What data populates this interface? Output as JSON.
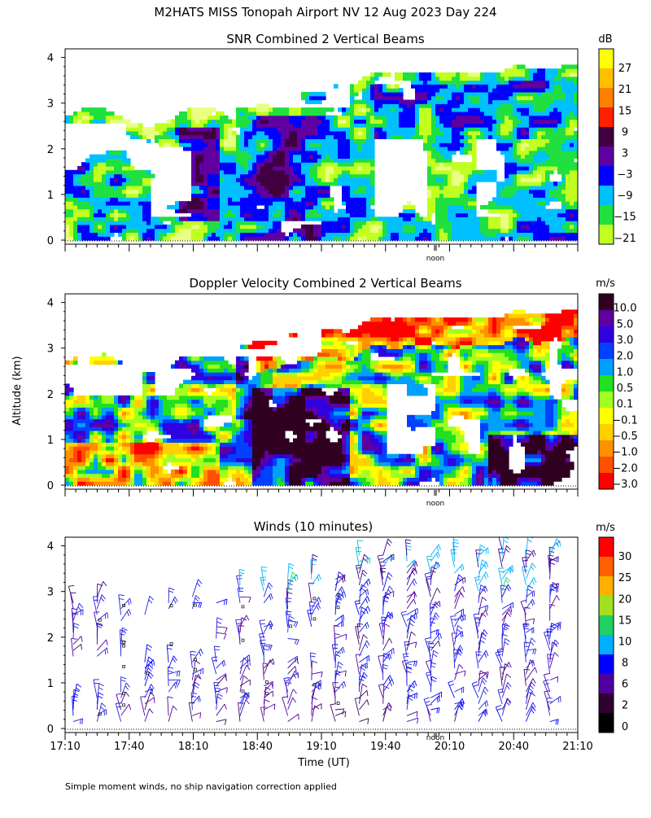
{
  "page": {
    "title": "M2HATS MISS Tonopah Airport NV  12 Aug 2023 Day 224",
    "y_axis_label": "Altitude (km)",
    "x_axis_label": "Time (UT)",
    "footnote": "Simple moment winds, no ship navigation correction applied"
  },
  "chart_data": [
    {
      "type": "heatmap",
      "title": "SNR Combined 2 Vertical Beams",
      "units": "dB",
      "ylim": [
        0,
        4
      ],
      "y_ticks": [
        "0",
        "1",
        "2",
        "3",
        "4"
      ],
      "x_range_minutes": [
        0,
        240
      ],
      "noon_label": "noon",
      "noon_minute": 170,
      "colorbar": {
        "labels": [
          "27",
          "21",
          "15",
          "9",
          "3",
          "−3",
          "−9",
          "−15",
          "−21"
        ],
        "colors": [
          "#ffff00",
          "#ffc000",
          "#ff8000",
          "#ff2000",
          "#400040",
          "#6000a0",
          "#0000ff",
          "#00c0ff",
          "#20e040",
          "#c0ff20"
        ]
      }
    },
    {
      "type": "heatmap",
      "title": "Doppler Velocity Combined 2 Vertical Beams",
      "units": "m/s",
      "ylim": [
        0,
        4
      ],
      "y_ticks": [
        "0",
        "1",
        "2",
        "3",
        "4"
      ],
      "noon_label": "noon",
      "colorbar": {
        "labels": [
          "10.0",
          "5.0",
          "3.0",
          "2.0",
          "1.0",
          "0.5",
          "0.1",
          "−0.1",
          "−0.5",
          "−1.0",
          "−2.0",
          "−3.0"
        ],
        "colors": [
          "#300020",
          "#6000a0",
          "#3000e0",
          "#0040ff",
          "#00a0ff",
          "#20e020",
          "#a0ff20",
          "#ffff00",
          "#ffd000",
          "#ff9000",
          "#ff5000",
          "#ff0000"
        ]
      }
    },
    {
      "type": "scatter",
      "title": "Winds (10 minutes)",
      "units": "m/s",
      "ylim": [
        0,
        4
      ],
      "y_ticks": [
        "0",
        "1",
        "2",
        "3",
        "4"
      ],
      "noon_label": "noon",
      "x_tick_labels": [
        "17:10",
        "17:40",
        "18:10",
        "18:40",
        "19:10",
        "19:40",
        "20:10",
        "20:40",
        "21:10"
      ],
      "colorbar": {
        "labels": [
          "30",
          "25",
          "20",
          "15",
          "10",
          "8",
          "6",
          "2",
          "0"
        ],
        "colors": [
          "#ff0000",
          "#ff6000",
          "#ffb000",
          "#a0e020",
          "#20d060",
          "#00b0ff",
          "#0000ff",
          "#5000a0",
          "#300030",
          "#000000"
        ]
      }
    }
  ]
}
